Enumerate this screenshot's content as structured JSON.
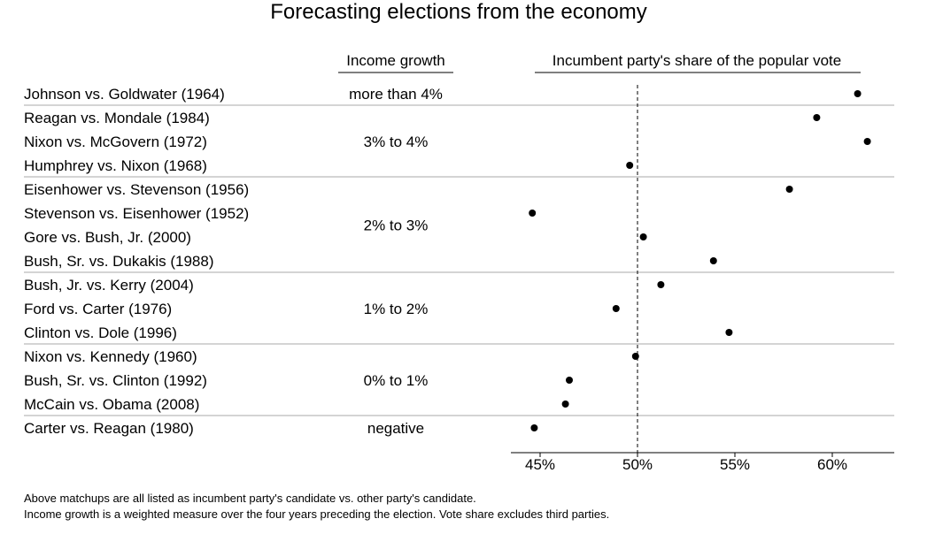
{
  "chart_data": {
    "type": "scatter",
    "title": "Forecasting elections from the economy",
    "column_headers": {
      "income_growth": "Income growth",
      "vote_share": "Incumbent party's share of the popular vote"
    },
    "x_axis": {
      "lim": [
        0.44,
        0.64
      ],
      "ticks": [
        0.45,
        0.5,
        0.55,
        0.6
      ],
      "tick_labels": [
        "45%",
        "50%",
        "55%",
        "60%"
      ],
      "reference_line": 0.5,
      "reference_style": "dashed"
    },
    "grid": false,
    "groups": [
      {
        "label": "more than 4%",
        "elections": [
          {
            "label": "Johnson vs. Goldwater (1964)",
            "vote_share": 0.613
          }
        ]
      },
      {
        "label": "3% to 4%",
        "elections": [
          {
            "label": "Reagan vs. Mondale (1984)",
            "vote_share": 0.592
          },
          {
            "label": "Nixon vs. McGovern (1972)",
            "vote_share": 0.618
          },
          {
            "label": "Humphrey vs. Nixon (1968)",
            "vote_share": 0.496
          }
        ]
      },
      {
        "label": "2% to 3%",
        "elections": [
          {
            "label": "Eisenhower vs. Stevenson (1956)",
            "vote_share": 0.578
          },
          {
            "label": "Stevenson vs. Eisenhower (1952)",
            "vote_share": 0.446
          },
          {
            "label": "Gore vs. Bush, Jr. (2000)",
            "vote_share": 0.503
          },
          {
            "label": "Bush, Sr. vs. Dukakis (1988)",
            "vote_share": 0.539
          }
        ]
      },
      {
        "label": "1% to 2%",
        "elections": [
          {
            "label": "Bush, Jr. vs. Kerry (2004)",
            "vote_share": 0.512
          },
          {
            "label": "Ford vs. Carter (1976)",
            "vote_share": 0.489
          },
          {
            "label": "Clinton vs. Dole (1996)",
            "vote_share": 0.547
          }
        ]
      },
      {
        "label": "0% to 1%",
        "elections": [
          {
            "label": "Nixon vs. Kennedy (1960)",
            "vote_share": 0.499
          },
          {
            "label": "Bush, Sr. vs. Clinton (1992)",
            "vote_share": 0.465
          },
          {
            "label": "McCain vs. Obama (2008)",
            "vote_share": 0.463
          }
        ]
      },
      {
        "label": "negative",
        "elections": [
          {
            "label": "Carter vs. Reagan (1980)",
            "vote_share": 0.447
          }
        ]
      }
    ],
    "notes": [
      "Above matchups are all listed as incumbent party's candidate vs. other party's candidate.",
      "Income growth is a weighted measure over the four years preceding the election.  Vote share excludes third parties."
    ]
  }
}
